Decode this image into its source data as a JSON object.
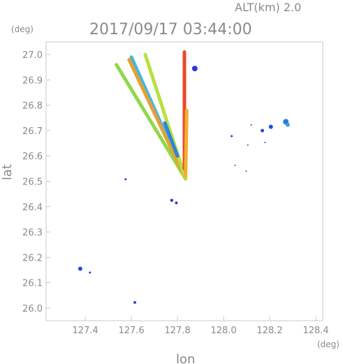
{
  "header": {
    "alt_label": "ALT(km)  2.0",
    "datetime": "2017/09/17  03:44:00",
    "y_unit": "(deg)",
    "x_unit": "(deg)"
  },
  "chart_data": {
    "type": "scatter",
    "title": "2017/09/17  03:44:00",
    "xlabel": "lon",
    "ylabel": "lat",
    "xlim": [
      127.23,
      128.43
    ],
    "ylim": [
      25.95,
      27.05
    ],
    "x_ticks": [
      "127.4",
      "127.6",
      "127.8",
      "128.0",
      "128.2",
      "128.4"
    ],
    "x_tick_values": [
      127.4,
      127.6,
      127.8,
      128.0,
      128.2,
      128.4
    ],
    "y_ticks": [
      "26.0",
      "26.1",
      "26.2",
      "26.3",
      "26.4",
      "26.5",
      "26.6",
      "26.7",
      "26.8",
      "26.9",
      "27.0"
    ],
    "y_tick_values": [
      26.0,
      26.1,
      26.2,
      26.3,
      26.4,
      26.5,
      26.6,
      26.7,
      26.8,
      26.9,
      27.0
    ],
    "grid": false,
    "radar_beams": [
      {
        "color": "#8fd84a",
        "from": [
          127.835,
          26.51
        ],
        "to": [
          127.535,
          26.96
        ]
      },
      {
        "color": "#3fb8e6",
        "from": [
          127.835,
          26.51
        ],
        "to": [
          127.6,
          26.99
        ]
      },
      {
        "color": "#e8a030",
        "from": [
          127.835,
          26.51
        ],
        "to": [
          127.59,
          26.98
        ]
      },
      {
        "color": "#b8e040",
        "from": [
          127.835,
          26.51
        ],
        "to": [
          127.66,
          27.0
        ]
      },
      {
        "color": "#e84a2a",
        "from": [
          127.83,
          26.55
        ],
        "to": [
          127.83,
          27.01
        ]
      },
      {
        "color": "#f0b030",
        "from": [
          127.835,
          26.52
        ],
        "to": [
          127.84,
          26.78
        ]
      },
      {
        "color": "#2a88d8",
        "from": [
          127.8,
          26.6
        ],
        "to": [
          127.745,
          26.73
        ]
      }
    ],
    "echo_points": [
      {
        "x": 127.875,
        "y": 26.945,
        "color": "#2a3ad0",
        "size": 4
      },
      {
        "x": 127.378,
        "y": 26.155,
        "color": "#2a48e0",
        "size": 3
      },
      {
        "x": 127.42,
        "y": 26.14,
        "color": "#2a3ad0",
        "size": 1.5
      },
      {
        "x": 127.575,
        "y": 26.508,
        "color": "#2a3ad0",
        "size": 1.5
      },
      {
        "x": 127.775,
        "y": 26.425,
        "color": "#2a3ad0",
        "size": 2.2
      },
      {
        "x": 127.795,
        "y": 26.415,
        "color": "#2a3ad0",
        "size": 2
      },
      {
        "x": 127.615,
        "y": 26.022,
        "color": "#2a48e0",
        "size": 2
      },
      {
        "x": 128.035,
        "y": 26.678,
        "color": "#2a3ad0",
        "size": 1.5
      },
      {
        "x": 128.12,
        "y": 26.722,
        "color": "#2a3ad0",
        "size": 1
      },
      {
        "x": 128.105,
        "y": 26.643,
        "color": "#2a3ad0",
        "size": 1
      },
      {
        "x": 128.05,
        "y": 26.563,
        "color": "#2a3ad0",
        "size": 1
      },
      {
        "x": 128.098,
        "y": 26.54,
        "color": "#2a3ad0",
        "size": 1
      },
      {
        "x": 128.168,
        "y": 26.7,
        "color": "#2a48e0",
        "size": 2.5
      },
      {
        "x": 128.205,
        "y": 26.715,
        "color": "#2a48e0",
        "size": 3
      },
      {
        "x": 128.18,
        "y": 26.653,
        "color": "#2a3ad0",
        "size": 1
      },
      {
        "x": 128.27,
        "y": 26.735,
        "color": "#2a78d8",
        "size": 4
      },
      {
        "x": 128.278,
        "y": 26.723,
        "color": "#3aa0e0",
        "size": 3
      }
    ]
  }
}
